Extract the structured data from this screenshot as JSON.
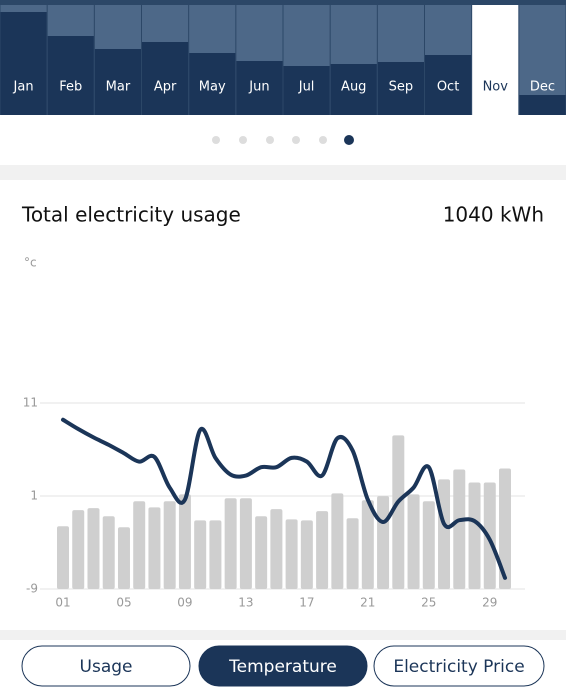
{
  "month_chart": {
    "type": "bar",
    "categories": [
      "Jan",
      "Feb",
      "Mar",
      "Apr",
      "May",
      "Jun",
      "Jul",
      "Aug",
      "Sep",
      "Oct",
      "Nov",
      "Dec"
    ],
    "values": [
      103,
      79,
      66,
      73,
      62,
      54,
      49,
      51,
      53,
      60,
      null,
      20
    ],
    "ylim": [
      0,
      115
    ],
    "color": "#1b3558",
    "selected": 10
  },
  "chart_data": {
    "type": "combo",
    "title": "Total electricity usage",
    "total": "1040 kWh",
    "y_unit": "°c",
    "categories": [
      "01",
      null,
      null,
      null,
      "05",
      null,
      null,
      null,
      "09",
      null,
      null,
      null,
      "13",
      null,
      null,
      null,
      "17",
      null,
      null,
      null,
      "21",
      null,
      null,
      null,
      "25",
      null,
      null,
      null,
      "29",
      null
    ],
    "ylim": [
      -9,
      26
    ],
    "yticks": [
      -9,
      1,
      11
    ],
    "y2lim": [
      0,
      128
    ],
    "grid": true,
    "series": [
      {
        "type": "bar",
        "axis": "y2",
        "color": "#cfcfcf",
        "values": [
          24.7,
          31,
          31.8,
          28.6,
          24.3,
          34.5,
          32.1,
          34.5,
          37.2,
          27,
          27,
          35.7,
          35.7,
          28.6,
          31.4,
          27.4,
          27,
          30.6,
          37.6,
          27.8,
          34.9,
          36.5,
          60.4,
          37.2,
          34.5,
          43.1,
          47,
          41.9,
          41.9,
          47.4
        ]
      },
      {
        "type": "line",
        "color": "#1b3558",
        "values": [
          9.2,
          8.2,
          7.3,
          6.5,
          5.6,
          4.7,
          5.2,
          1.9,
          0.6,
          8.1,
          5.1,
          3.3,
          3.2,
          4.1,
          4.1,
          5.1,
          4.7,
          3.2,
          7.2,
          5.9,
          0.6,
          -1.8,
          0.4,
          1.9,
          4.1,
          -2.0,
          -1.6,
          -1.7,
          -3.7,
          -7.8
        ]
      }
    ]
  },
  "tabs": {
    "items": [
      "Usage",
      "Temperature",
      "Electricity Price"
    ],
    "selected": 1
  }
}
